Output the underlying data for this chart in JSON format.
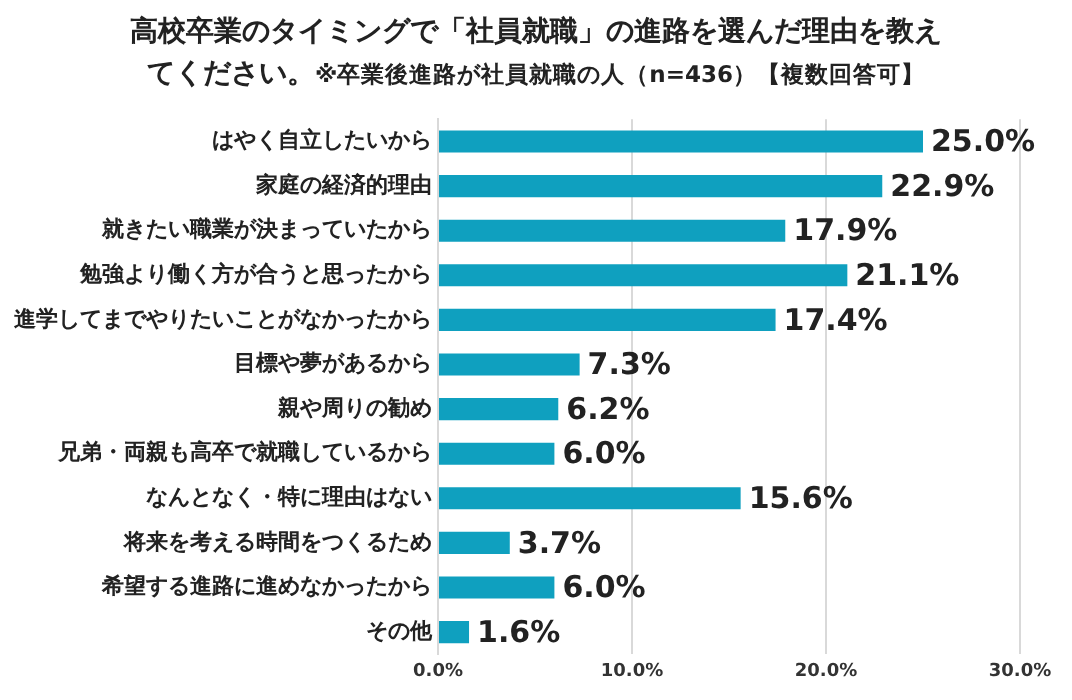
{
  "chart_data": {
    "type": "bar",
    "orientation": "horizontal",
    "title": "高校卒業のタイミングで「社員就職」の進路を選んだ理由を教えてください。",
    "subtitle": "※卒業後進路が社員就職の人（n=436）【複数回答可】",
    "categories": [
      "はやく自立したいから",
      "家庭の経済的理由",
      "就きたい職業が決まっていたから",
      "勉強より働く方が合うと思ったから",
      "進学してまでやりたいことがなかったから",
      "目標や夢があるから",
      "親や周りの勧め",
      "兄弟・両親も高卒で就職しているから",
      "なんとなく・特に理由はない",
      "将来を考える時間をつくるため",
      "希望する進路に進めなかったから",
      "その他"
    ],
    "values": [
      25.0,
      22.9,
      17.9,
      21.1,
      17.4,
      7.3,
      6.2,
      6.0,
      15.6,
      3.7,
      6.0,
      1.6
    ],
    "value_labels": [
      "25.0%",
      "22.9%",
      "17.9%",
      "21.1%",
      "17.4%",
      "7.3%",
      "6.2%",
      "6.0%",
      "15.6%",
      "3.7%",
      "6.0%",
      "1.6%"
    ],
    "color": "#0fa0bf",
    "xlim": [
      0,
      30
    ],
    "xticks": [
      {
        "value": 0,
        "label": "0.0%"
      },
      {
        "value": 10,
        "label": "10.0%"
      },
      {
        "value": 20,
        "label": "20.0%"
      },
      {
        "value": 30,
        "label": "30.0%"
      }
    ],
    "grid": "x",
    "legend": false
  }
}
